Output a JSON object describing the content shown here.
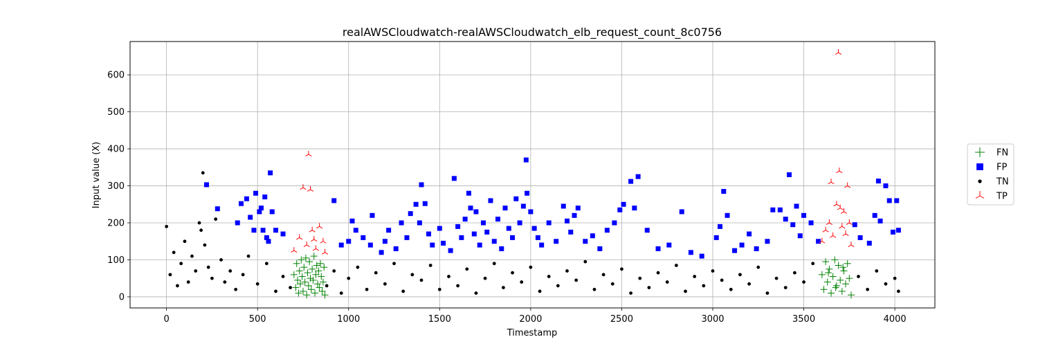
{
  "chart_data": {
    "type": "scatter",
    "title": "realAWSCloudwatch-realAWSCloudwatch_elb_request_count_8c0756",
    "xlabel": "Timestamp",
    "ylabel": "Input value (X)",
    "xlim": [
      -200,
      4220
    ],
    "ylim": [
      -30,
      690
    ],
    "x_ticks": [
      0,
      500,
      1000,
      1500,
      2000,
      2500,
      3000,
      3500,
      4000
    ],
    "y_ticks": [
      0,
      100,
      200,
      300,
      400,
      500,
      600
    ],
    "grid": true,
    "legend_placement": "right",
    "series": [
      {
        "name": "FN",
        "marker": "plus",
        "color": "#008000",
        "points": [
          [
            700,
            60
          ],
          [
            710,
            25
          ],
          [
            715,
            90
          ],
          [
            720,
            45
          ],
          [
            725,
            10
          ],
          [
            730,
            70
          ],
          [
            735,
            35
          ],
          [
            740,
            100
          ],
          [
            745,
            55
          ],
          [
            750,
            15
          ],
          [
            755,
            80
          ],
          [
            760,
            40
          ],
          [
            765,
            105
          ],
          [
            770,
            5
          ],
          [
            775,
            65
          ],
          [
            780,
            30
          ],
          [
            785,
            95
          ],
          [
            790,
            50
          ],
          [
            795,
            20
          ],
          [
            800,
            75
          ],
          [
            805,
            45
          ],
          [
            810,
            110
          ],
          [
            815,
            10
          ],
          [
            820,
            60
          ],
          [
            825,
            85
          ],
          [
            830,
            35
          ],
          [
            835,
            70
          ],
          [
            840,
            25
          ],
          [
            845,
            90
          ],
          [
            850,
            55
          ],
          [
            855,
            15
          ],
          [
            860,
            40
          ],
          [
            865,
            80
          ],
          [
            870,
            5
          ],
          [
            3600,
            60
          ],
          [
            3610,
            20
          ],
          [
            3620,
            95
          ],
          [
            3630,
            40
          ],
          [
            3640,
            75
          ],
          [
            3650,
            10
          ],
          [
            3660,
            55
          ],
          [
            3670,
            100
          ],
          [
            3680,
            30
          ],
          [
            3690,
            85
          ],
          [
            3700,
            45
          ],
          [
            3710,
            15
          ],
          [
            3720,
            70
          ],
          [
            3730,
            35
          ],
          [
            3740,
            90
          ],
          [
            3750,
            50
          ],
          [
            3760,
            5
          ],
          [
            3635,
            65
          ],
          [
            3675,
            25
          ],
          [
            3715,
            80
          ]
        ]
      },
      {
        "name": "FP",
        "marker": "square",
        "color": "#0000ff",
        "points": [
          [
            220,
            303
          ],
          [
            280,
            238
          ],
          [
            390,
            200
          ],
          [
            410,
            252
          ],
          [
            440,
            265
          ],
          [
            460,
            215
          ],
          [
            480,
            180
          ],
          [
            490,
            280
          ],
          [
            510,
            230
          ],
          [
            520,
            240
          ],
          [
            530,
            180
          ],
          [
            540,
            270
          ],
          [
            550,
            160
          ],
          [
            560,
            150
          ],
          [
            570,
            335
          ],
          [
            580,
            230
          ],
          [
            600,
            180
          ],
          [
            640,
            170
          ],
          [
            920,
            260
          ],
          [
            960,
            140
          ],
          [
            1000,
            150
          ],
          [
            1020,
            205
          ],
          [
            1040,
            180
          ],
          [
            1080,
            160
          ],
          [
            1120,
            140
          ],
          [
            1130,
            220
          ],
          [
            1180,
            120
          ],
          [
            1200,
            150
          ],
          [
            1220,
            180
          ],
          [
            1260,
            130
          ],
          [
            1290,
            200
          ],
          [
            1320,
            160
          ],
          [
            1340,
            225
          ],
          [
            1370,
            250
          ],
          [
            1390,
            200
          ],
          [
            1400,
            303
          ],
          [
            1420,
            252
          ],
          [
            1440,
            170
          ],
          [
            1460,
            140
          ],
          [
            1500,
            185
          ],
          [
            1520,
            145
          ],
          [
            1560,
            125
          ],
          [
            1580,
            320
          ],
          [
            1600,
            190
          ],
          [
            1620,
            160
          ],
          [
            1640,
            210
          ],
          [
            1660,
            280
          ],
          [
            1670,
            240
          ],
          [
            1690,
            170
          ],
          [
            1700,
            230
          ],
          [
            1720,
            140
          ],
          [
            1740,
            200
          ],
          [
            1760,
            175
          ],
          [
            1780,
            260
          ],
          [
            1800,
            150
          ],
          [
            1820,
            210
          ],
          [
            1840,
            130
          ],
          [
            1860,
            240
          ],
          [
            1880,
            185
          ],
          [
            1900,
            160
          ],
          [
            1920,
            265
          ],
          [
            1940,
            200
          ],
          [
            1960,
            245
          ],
          [
            1975,
            370
          ],
          [
            1980,
            280
          ],
          [
            2000,
            230
          ],
          [
            2020,
            185
          ],
          [
            2040,
            160
          ],
          [
            2060,
            140
          ],
          [
            2100,
            200
          ],
          [
            2140,
            150
          ],
          [
            2180,
            245
          ],
          [
            2200,
            205
          ],
          [
            2220,
            175
          ],
          [
            2240,
            220
          ],
          [
            2260,
            240
          ],
          [
            2300,
            150
          ],
          [
            2340,
            165
          ],
          [
            2380,
            130
          ],
          [
            2420,
            180
          ],
          [
            2460,
            200
          ],
          [
            2490,
            235
          ],
          [
            2510,
            250
          ],
          [
            2550,
            312
          ],
          [
            2570,
            240
          ],
          [
            2590,
            325
          ],
          [
            2640,
            180
          ],
          [
            2700,
            130
          ],
          [
            2760,
            140
          ],
          [
            2830,
            230
          ],
          [
            2880,
            120
          ],
          [
            2940,
            110
          ],
          [
            3020,
            160
          ],
          [
            3040,
            190
          ],
          [
            3060,
            285
          ],
          [
            3080,
            220
          ],
          [
            3120,
            125
          ],
          [
            3160,
            140
          ],
          [
            3200,
            170
          ],
          [
            3240,
            130
          ],
          [
            3300,
            150
          ],
          [
            3330,
            235
          ],
          [
            3370,
            235
          ],
          [
            3400,
            210
          ],
          [
            3420,
            330
          ],
          [
            3440,
            195
          ],
          [
            3460,
            245
          ],
          [
            3480,
            165
          ],
          [
            3500,
            220
          ],
          [
            3540,
            200
          ],
          [
            3580,
            150
          ],
          [
            3780,
            195
          ],
          [
            3810,
            160
          ],
          [
            3860,
            145
          ],
          [
            3890,
            220
          ],
          [
            3910,
            313
          ],
          [
            3920,
            205
          ],
          [
            3950,
            300
          ],
          [
            3970,
            260
          ],
          [
            3990,
            175
          ],
          [
            4010,
            260
          ],
          [
            4020,
            180
          ]
        ]
      },
      {
        "name": "TN",
        "marker": "dot",
        "color": "#000000",
        "points": [
          [
            0,
            190
          ],
          [
            20,
            60
          ],
          [
            40,
            120
          ],
          [
            60,
            30
          ],
          [
            80,
            90
          ],
          [
            100,
            150
          ],
          [
            120,
            40
          ],
          [
            140,
            110
          ],
          [
            160,
            70
          ],
          [
            180,
            200
          ],
          [
            190,
            180
          ],
          [
            200,
            335
          ],
          [
            210,
            140
          ],
          [
            230,
            80
          ],
          [
            250,
            50
          ],
          [
            270,
            210
          ],
          [
            300,
            100
          ],
          [
            320,
            40
          ],
          [
            350,
            70
          ],
          [
            380,
            20
          ],
          [
            420,
            60
          ],
          [
            450,
            110
          ],
          [
            500,
            35
          ],
          [
            550,
            90
          ],
          [
            600,
            15
          ],
          [
            640,
            55
          ],
          [
            680,
            25
          ],
          [
            880,
            30
          ],
          [
            920,
            70
          ],
          [
            960,
            10
          ],
          [
            1000,
            50
          ],
          [
            1050,
            80
          ],
          [
            1100,
            20
          ],
          [
            1150,
            65
          ],
          [
            1200,
            35
          ],
          [
            1250,
            90
          ],
          [
            1300,
            15
          ],
          [
            1350,
            60
          ],
          [
            1400,
            45
          ],
          [
            1450,
            85
          ],
          [
            1500,
            20
          ],
          [
            1550,
            55
          ],
          [
            1600,
            30
          ],
          [
            1650,
            75
          ],
          [
            1700,
            10
          ],
          [
            1750,
            50
          ],
          [
            1800,
            90
          ],
          [
            1850,
            25
          ],
          [
            1900,
            65
          ],
          [
            1950,
            40
          ],
          [
            2000,
            80
          ],
          [
            2050,
            15
          ],
          [
            2100,
            55
          ],
          [
            2150,
            30
          ],
          [
            2200,
            70
          ],
          [
            2250,
            45
          ],
          [
            2300,
            95
          ],
          [
            2350,
            20
          ],
          [
            2400,
            60
          ],
          [
            2450,
            35
          ],
          [
            2500,
            75
          ],
          [
            2550,
            10
          ],
          [
            2600,
            50
          ],
          [
            2650,
            25
          ],
          [
            2700,
            65
          ],
          [
            2750,
            40
          ],
          [
            2800,
            85
          ],
          [
            2850,
            15
          ],
          [
            2900,
            55
          ],
          [
            2950,
            30
          ],
          [
            3000,
            70
          ],
          [
            3050,
            45
          ],
          [
            3100,
            20
          ],
          [
            3150,
            60
          ],
          [
            3200,
            35
          ],
          [
            3250,
            80
          ],
          [
            3300,
            10
          ],
          [
            3350,
            50
          ],
          [
            3400,
            25
          ],
          [
            3450,
            65
          ],
          [
            3500,
            40
          ],
          [
            3550,
            90
          ],
          [
            3800,
            55
          ],
          [
            3850,
            20
          ],
          [
            3900,
            70
          ],
          [
            3950,
            35
          ],
          [
            4000,
            50
          ],
          [
            4020,
            15
          ]
        ]
      },
      {
        "name": "TP",
        "marker": "tri_up",
        "color": "#ff0000",
        "points": [
          [
            700,
            125
          ],
          [
            730,
            160
          ],
          [
            750,
            295
          ],
          [
            770,
            140
          ],
          [
            780,
            385
          ],
          [
            790,
            290
          ],
          [
            800,
            180
          ],
          [
            810,
            155
          ],
          [
            820,
            130
          ],
          [
            840,
            190
          ],
          [
            860,
            150
          ],
          [
            870,
            120
          ],
          [
            3600,
            150
          ],
          [
            3620,
            180
          ],
          [
            3640,
            200
          ],
          [
            3650,
            310
          ],
          [
            3660,
            165
          ],
          [
            3680,
            250
          ],
          [
            3690,
            660
          ],
          [
            3695,
            340
          ],
          [
            3700,
            240
          ],
          [
            3710,
            190
          ],
          [
            3720,
            230
          ],
          [
            3730,
            170
          ],
          [
            3740,
            300
          ],
          [
            3750,
            200
          ],
          [
            3760,
            140
          ]
        ]
      }
    ]
  }
}
